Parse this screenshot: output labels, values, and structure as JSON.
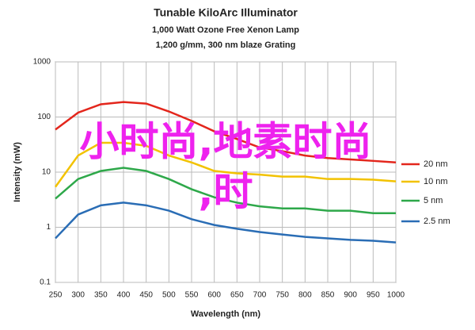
{
  "chart_data": {
    "type": "line",
    "title": "Tunable KiloArc Illuminator",
    "subtitle": [
      "1,000 Watt Ozone Free Xenon Lamp",
      "1,200 g/mm, 300 nm blaze Grating"
    ],
    "xlabel": "Wavelength (nm)",
    "ylabel": "Intensity (mW)",
    "x": [
      250,
      300,
      350,
      400,
      450,
      500,
      550,
      600,
      650,
      700,
      750,
      800,
      850,
      900,
      950,
      1000
    ],
    "series": [
      {
        "name": "20 nm",
        "color": "#e3261c",
        "values": [
          59,
          120,
          170,
          187,
          175,
          126,
          85,
          55,
          40,
          28,
          24,
          20,
          18,
          17,
          16,
          15
        ]
      },
      {
        "name": "10 nm",
        "color": "#f2c200",
        "values": [
          5.4,
          20,
          34,
          34,
          30,
          20,
          15,
          10.5,
          9.5,
          9,
          8.3,
          8.3,
          7.5,
          7.5,
          7.3,
          6.8
        ]
      },
      {
        "name": "5 nm",
        "color": "#2ea84a",
        "values": [
          3.3,
          7.5,
          10.5,
          12,
          10.5,
          7.5,
          4.9,
          3.5,
          2.8,
          2.4,
          2.2,
          2.2,
          2.0,
          2.0,
          1.8,
          1.8
        ]
      },
      {
        "name": "2.5 nm",
        "color": "#2a6db5",
        "values": [
          0.63,
          1.7,
          2.5,
          2.8,
          2.5,
          2.0,
          1.4,
          1.1,
          0.94,
          0.82,
          0.74,
          0.67,
          0.63,
          0.59,
          0.57,
          0.53
        ]
      }
    ],
    "xlim": [
      250,
      1000
    ],
    "xticks": [
      250,
      300,
      350,
      400,
      450,
      500,
      550,
      600,
      650,
      700,
      750,
      800,
      850,
      900,
      950,
      1000
    ],
    "ylim": [
      0.1,
      1000
    ],
    "yticks": [
      0.1,
      1,
      10,
      100,
      1000
    ],
    "ylog": true,
    "grid": true,
    "legend": "right",
    "annotations": [
      {
        "text": "小时尚,地素时尚",
        "color": "#ee22ee"
      },
      {
        "text": ",时",
        "color": "#ee22ee"
      }
    ]
  }
}
